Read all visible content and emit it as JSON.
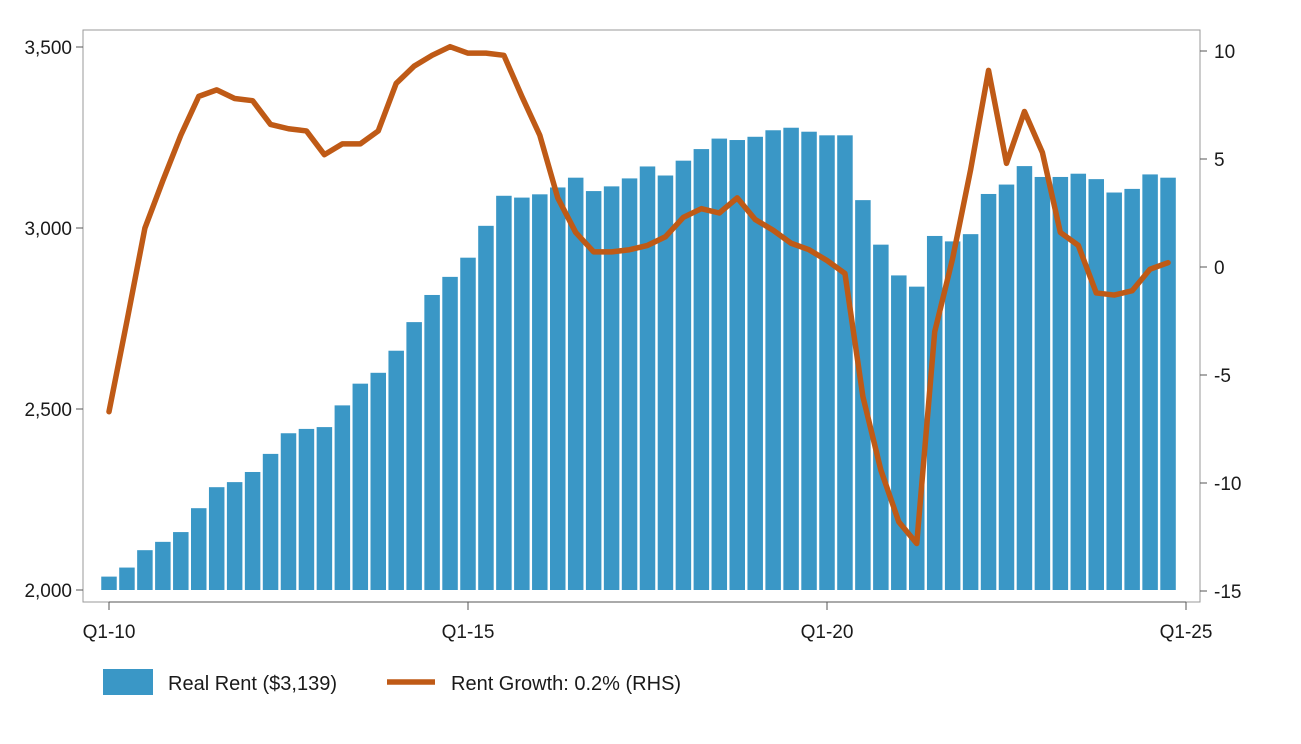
{
  "chart_data": {
    "type": "bar+line",
    "title": "",
    "xlabel": "",
    "ylabel": "",
    "x_tick_labels": [
      "Q1-10",
      "Q1-15",
      "Q1-20",
      "Q1-25"
    ],
    "x_tick_positions": [
      0,
      20,
      40,
      60
    ],
    "y_left": {
      "lim": [
        2000,
        3500
      ],
      "ticks": [
        2000,
        2500,
        3000,
        3500
      ],
      "tick_labels": [
        "2,000",
        "2,500",
        "3,000",
        "3,500"
      ]
    },
    "y_right": {
      "lim": [
        -15,
        10
      ],
      "ticks": [
        -15,
        -10,
        -5,
        0,
        5,
        10
      ],
      "tick_labels": [
        "-15",
        "-10",
        "-5",
        "0",
        "5",
        "10"
      ]
    },
    "grid": false,
    "legend_position": "bottom",
    "series": [
      {
        "name": "Real Rent ($3,139)",
        "type": "bar",
        "axis": "left",
        "color": "#3a97c6",
        "values": [
          2037,
          2062,
          2110,
          2133,
          2160,
          2226,
          2284,
          2298,
          2326,
          2376,
          2433,
          2445,
          2450,
          2510,
          2570,
          2600,
          2661,
          2740,
          2815,
          2865,
          2918,
          3006,
          3089,
          3084,
          3093,
          3112,
          3139,
          3102,
          3115,
          3137,
          3170,
          3145,
          3186,
          3218,
          3247,
          3243,
          3252,
          3270,
          3277,
          3266,
          3256,
          3256,
          3077,
          2954,
          2869,
          2838,
          2978,
          2963,
          2983,
          3094,
          3120,
          3171,
          3141,
          3141,
          3150,
          3135,
          3098,
          3108,
          3148,
          3139
        ]
      },
      {
        "name": "Rent Growth: 0.2% (RHS)",
        "type": "line",
        "axis": "right",
        "color": "#bf5a16",
        "values": [
          -6.7,
          -2.5,
          1.8,
          4.0,
          6.1,
          7.9,
          8.2,
          7.8,
          7.7,
          6.6,
          6.4,
          6.3,
          5.2,
          5.7,
          5.7,
          6.3,
          8.5,
          9.3,
          9.8,
          10.2,
          9.9,
          9.9,
          9.8,
          7.9,
          6.1,
          3.2,
          1.6,
          0.7,
          0.7,
          0.8,
          1.0,
          1.4,
          2.3,
          2.7,
          2.5,
          3.2,
          2.2,
          1.7,
          1.1,
          0.8,
          0.3,
          -0.3,
          -6.0,
          -9.4,
          -11.8,
          -12.8,
          -3.0,
          0.4,
          4.5,
          9.1,
          4.8,
          7.2,
          5.3,
          1.6,
          1.0,
          -1.2,
          -1.3,
          -1.1,
          -0.1,
          0.2
        ]
      }
    ]
  }
}
